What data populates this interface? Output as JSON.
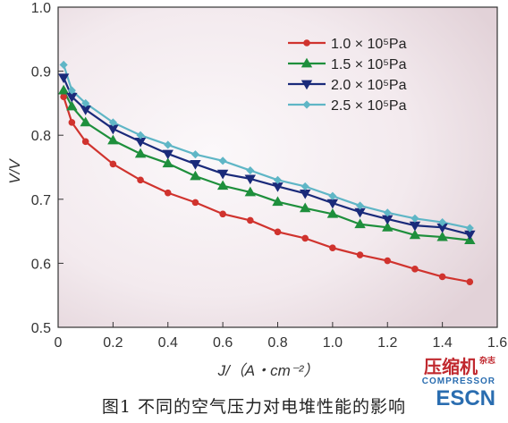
{
  "chart_data": {
    "type": "line",
    "title": "",
    "xlabel": "J/（A・cm⁻²）",
    "ylabel": "V/V",
    "xlim": [
      0,
      1.6
    ],
    "ylim": [
      0.5,
      1.0
    ],
    "xticks": [
      "0",
      "0.2",
      "0.4",
      "0.6",
      "0.8",
      "1.0",
      "1.2",
      "1.4",
      "1.6"
    ],
    "yticks": [
      "0.5",
      "0.6",
      "0.7",
      "0.8",
      "0.9",
      "1.0"
    ],
    "grid": false,
    "legend_position": "top-right",
    "series": [
      {
        "name": "1.0 × 10⁵Pa",
        "color": "#d0332e",
        "marker": "circle",
        "x": [
          0.02,
          0.05,
          0.1,
          0.2,
          0.3,
          0.4,
          0.5,
          0.6,
          0.7,
          0.8,
          0.9,
          1.0,
          1.1,
          1.2,
          1.3,
          1.4,
          1.5
        ],
        "y": [
          0.86,
          0.82,
          0.79,
          0.755,
          0.73,
          0.71,
          0.695,
          0.677,
          0.667,
          0.649,
          0.639,
          0.624,
          0.613,
          0.604,
          0.591,
          0.579,
          0.571
        ]
      },
      {
        "name": "1.5 × 10⁵Pa",
        "color": "#1e8f3c",
        "marker": "triangle-up",
        "x": [
          0.02,
          0.05,
          0.1,
          0.2,
          0.3,
          0.4,
          0.5,
          0.6,
          0.7,
          0.8,
          0.9,
          1.0,
          1.1,
          1.2,
          1.3,
          1.4,
          1.5
        ],
        "y": [
          0.87,
          0.845,
          0.82,
          0.792,
          0.771,
          0.756,
          0.736,
          0.721,
          0.711,
          0.696,
          0.686,
          0.677,
          0.661,
          0.656,
          0.644,
          0.641,
          0.636
        ]
      },
      {
        "name": "2.0 × 10⁵Pa",
        "color": "#1a2a7a",
        "marker": "triangle-down",
        "x": [
          0.02,
          0.05,
          0.1,
          0.2,
          0.3,
          0.4,
          0.5,
          0.6,
          0.7,
          0.8,
          0.9,
          1.0,
          1.1,
          1.2,
          1.3,
          1.4,
          1.5
        ],
        "y": [
          0.89,
          0.86,
          0.84,
          0.81,
          0.79,
          0.771,
          0.755,
          0.74,
          0.732,
          0.72,
          0.709,
          0.694,
          0.68,
          0.669,
          0.659,
          0.656,
          0.645
        ]
      },
      {
        "name": "2.5 × 10⁵Pa",
        "color": "#5fb6c6",
        "marker": "diamond",
        "x": [
          0.02,
          0.05,
          0.1,
          0.2,
          0.3,
          0.4,
          0.5,
          0.6,
          0.7,
          0.8,
          0.9,
          1.0,
          1.1,
          1.2,
          1.3,
          1.4,
          1.5
        ],
        "y": [
          0.91,
          0.87,
          0.85,
          0.82,
          0.8,
          0.785,
          0.77,
          0.76,
          0.745,
          0.73,
          0.72,
          0.705,
          0.69,
          0.679,
          0.67,
          0.664,
          0.655
        ]
      }
    ]
  },
  "caption": "图1 不同的空气压力对电堆性能的影响",
  "watermark": {
    "title": "压缩机",
    "side_text": "杂志",
    "subtitle": "COMPRESSOR",
    "esc": "ESCN"
  }
}
